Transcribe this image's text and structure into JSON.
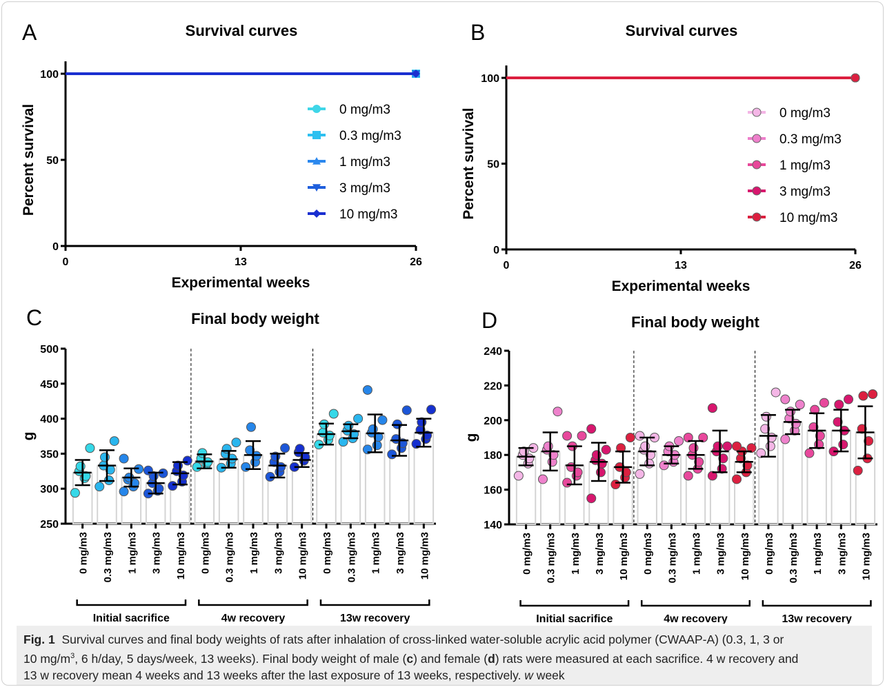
{
  "chart_data": [
    {
      "panel": "A",
      "type": "line",
      "title": "Survival curves",
      "xlabel": "Experimental weeks",
      "ylabel": "Percent survival",
      "xlim": [
        0,
        26
      ],
      "ylim": [
        0,
        100
      ],
      "xticks": [
        0,
        13,
        26
      ],
      "yticks": [
        0,
        50,
        100
      ],
      "legend_position": "center-right",
      "series": [
        {
          "name": "0 mg/m3",
          "color": "#3fd6e8",
          "marker": "circle",
          "x": [
            0,
            26
          ],
          "y": [
            100,
            100
          ]
        },
        {
          "name": "0.3 mg/m3",
          "color": "#2ec0f0",
          "marker": "square",
          "x": [
            0,
            26
          ],
          "y": [
            100,
            100
          ]
        },
        {
          "name": "1 mg/m3",
          "color": "#2b88ee",
          "marker": "triangle-up",
          "x": [
            0,
            26
          ],
          "y": [
            100,
            100
          ]
        },
        {
          "name": "3 mg/m3",
          "color": "#1f5fdc",
          "marker": "triangle-down",
          "x": [
            0,
            26
          ],
          "y": [
            100,
            100
          ]
        },
        {
          "name": "10 mg/m3",
          "color": "#1a2fd0",
          "marker": "diamond",
          "x": [
            0,
            26
          ],
          "y": [
            100,
            100
          ]
        }
      ]
    },
    {
      "panel": "B",
      "type": "line",
      "title": "Survival curves",
      "xlabel": "Experimental weeks",
      "ylabel": "Percent survival",
      "xlim": [
        0,
        26
      ],
      "ylim": [
        0,
        100
      ],
      "xticks": [
        0,
        13,
        26
      ],
      "yticks": [
        0,
        50,
        100
      ],
      "legend_position": "center-right",
      "series": [
        {
          "name": "0 mg/m3",
          "color": "#f4b6e6",
          "marker": "circle",
          "x": [
            0,
            26
          ],
          "y": [
            100,
            100
          ]
        },
        {
          "name": "0.3 mg/m3",
          "color": "#ee7fcb",
          "marker": "circle",
          "x": [
            0,
            26
          ],
          "y": [
            100,
            100
          ]
        },
        {
          "name": "1 mg/m3",
          "color": "#e8489a",
          "marker": "circle",
          "x": [
            0,
            26
          ],
          "y": [
            100,
            100
          ]
        },
        {
          "name": "3 mg/m3",
          "color": "#d8166e",
          "marker": "circle",
          "x": [
            0,
            26
          ],
          "y": [
            100,
            100
          ]
        },
        {
          "name": "10 mg/m3",
          "color": "#dc1f3f",
          "marker": "circle",
          "x": [
            0,
            26
          ],
          "y": [
            100,
            100
          ]
        }
      ]
    },
    {
      "panel": "C",
      "type": "bar",
      "title": "Final body weight",
      "ylabel": "g",
      "ylim": [
        250,
        500
      ],
      "yticks": [
        250,
        300,
        350,
        400,
        450,
        500
      ],
      "categories": [
        "0 mg/m3",
        "0.3 mg/m3",
        "1 mg/m3",
        "3 mg/m3",
        "10 mg/m3"
      ],
      "groups": [
        "Initial sacrifice",
        "4w recovery",
        "13w recovery"
      ],
      "colors": [
        "#35d8e8",
        "#2ab6ee",
        "#2686ea",
        "#1c56d8",
        "#1530d0"
      ],
      "means": [
        [
          323,
          333,
          316,
          308,
          322
        ],
        [
          339,
          342,
          348,
          333,
          341
        ],
        [
          378,
          382,
          379,
          369,
          380
        ]
      ],
      "sd": [
        [
          18,
          22,
          13,
          15,
          16
        ],
        [
          10,
          12,
          20,
          17,
          10
        ],
        [
          15,
          10,
          27,
          22,
          20
        ]
      ],
      "points": [
        [
          [
            294,
            315,
            318,
            325,
            332,
            358
          ],
          [
            303,
            312,
            327,
            333,
            345,
            368
          ],
          [
            296,
            303,
            308,
            313,
            316,
            328,
            343
          ],
          [
            293,
            297,
            300,
            308,
            318,
            322,
            326
          ],
          [
            304,
            310,
            319,
            325,
            333,
            340
          ]
        ],
        [
          [
            331,
            335,
            338,
            343,
            351
          ],
          [
            330,
            336,
            343,
            350,
            357,
            366
          ],
          [
            331,
            338,
            347,
            355,
            388
          ],
          [
            317,
            324,
            331,
            338,
            346,
            358
          ],
          [
            331,
            340,
            345,
            352,
            357
          ]
        ],
        [
          [
            363,
            370,
            376,
            380,
            392,
            407
          ],
          [
            367,
            372,
            378,
            383,
            390,
            400
          ],
          [
            356,
            362,
            374,
            380,
            385,
            398,
            441
          ],
          [
            349,
            358,
            365,
            371,
            392,
            412
          ],
          [
            364,
            371,
            376,
            384,
            395,
            413
          ]
        ]
      ]
    },
    {
      "panel": "D",
      "type": "bar",
      "title": "Final body weight",
      "ylabel": "g",
      "ylim": [
        140,
        240
      ],
      "yticks": [
        140,
        160,
        180,
        200,
        220,
        240
      ],
      "categories": [
        "0 mg/m3",
        "0.3 mg/m3",
        "1 mg/m3",
        "3 mg/m3",
        "10 mg/m3"
      ],
      "groups": [
        "Initial sacrifice",
        "4w recovery",
        "13w recovery"
      ],
      "colors": [
        "#f4b6e6",
        "#ee82cc",
        "#e8489c",
        "#d8166e",
        "#dc2040"
      ],
      "means": [
        [
          179,
          182,
          174,
          176,
          173
        ],
        [
          182,
          180,
          180,
          182,
          176
        ],
        [
          191,
          199,
          194,
          194,
          193
        ]
      ],
      "sd": [
        [
          5,
          11,
          11,
          11,
          9
        ],
        [
          8,
          5,
          8,
          12,
          6
        ],
        [
          12,
          7,
          10,
          12,
          15
        ]
      ],
      "points": [
        [
          [
            168,
            175,
            178,
            180,
            182,
            184
          ],
          [
            166,
            176,
            180,
            183,
            185,
            205
          ],
          [
            164,
            168,
            170,
            173,
            185,
            191,
            191
          ],
          [
            155,
            170,
            175,
            177,
            180,
            183,
            195
          ],
          [
            163,
            167,
            170,
            173,
            184,
            190
          ]
        ],
        [
          [
            169,
            175,
            180,
            183,
            185,
            190,
            191
          ],
          [
            174,
            176,
            180,
            182,
            185,
            188
          ],
          [
            168,
            172,
            176,
            180,
            184,
            190,
            190
          ],
          [
            168,
            172,
            178,
            182,
            185,
            185,
            207
          ],
          [
            166,
            170,
            174,
            178,
            182,
            184,
            185
          ]
        ],
        [
          [
            181,
            185,
            190,
            195,
            202,
            216
          ],
          [
            189,
            194,
            198,
            201,
            205,
            209,
            212
          ],
          [
            181,
            186,
            191,
            196,
            206,
            210
          ],
          [
            182,
            186,
            194,
            199,
            209,
            212
          ],
          [
            171,
            178,
            188,
            195,
            214,
            215
          ]
        ]
      ]
    }
  ],
  "panel_letters": [
    "A",
    "B",
    "C",
    "D"
  ],
  "caption": {
    "label": "Fig. 1",
    "line1": "Survival curves and final body weights of rats after inhalation of cross-linked water-soluble acrylic acid polymer (CWAAP-A) (0.3, 1, 3 or",
    "line2_a": "10 mg/m",
    "line2_sup": "3",
    "line2_b": ", 6 h/day, 5 days/week, 13 weeks). Final body weight of male (",
    "line2_c": "c",
    "line2_d": ") and female (",
    "line2_e": "d",
    "line2_f": ") rats were measured at each sacrifice. 4 w recovery and",
    "line3_a": "13 w recovery mean 4 weeks and 13 weeks after the last exposure of 13 weeks, respectively. ",
    "line3_i": "w",
    "line3_b": " week"
  }
}
